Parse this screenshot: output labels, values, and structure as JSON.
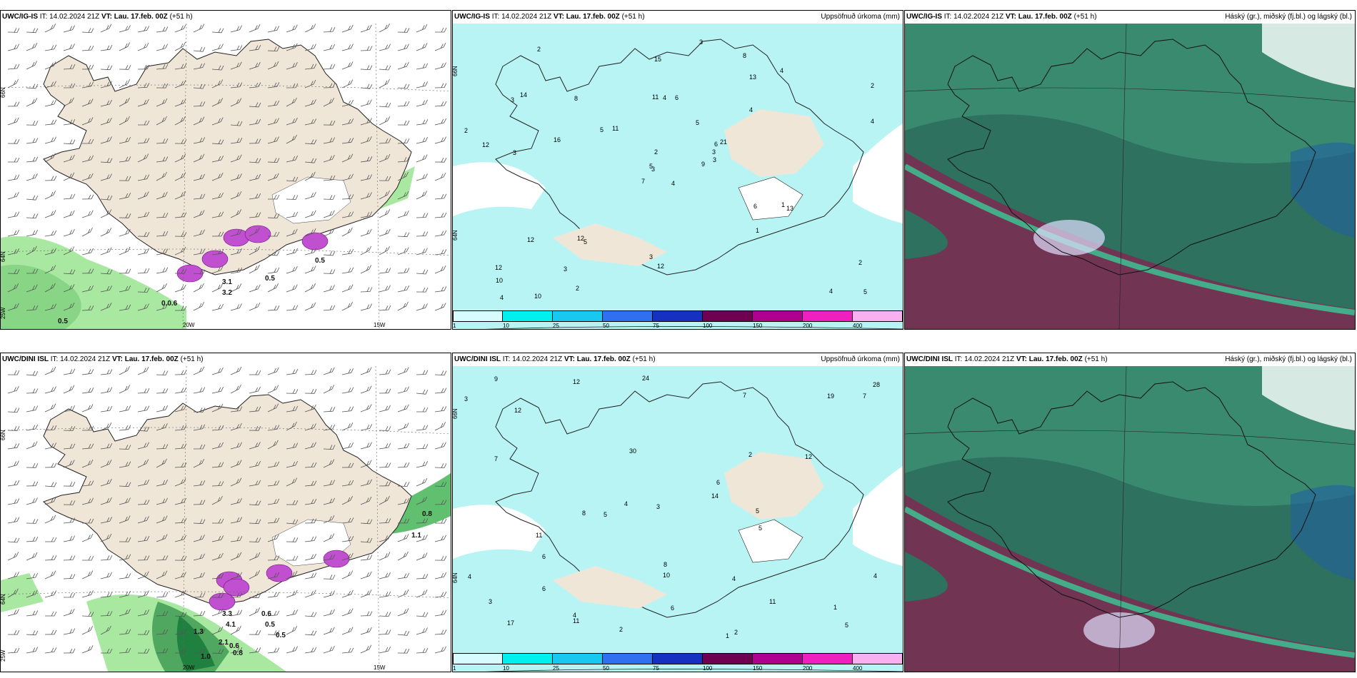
{
  "panels": [
    {
      "model": "UWC/IG-IS",
      "it_label": "IT:",
      "it": "14.02.2024 21Z",
      "vt_label": "VT:",
      "vt": "Lau. 17.feb. 00Z",
      "lead": "(+51 h)",
      "right_title": "",
      "axis": {
        "lat1": "66N",
        "lat2": "64N",
        "lon1": "20W",
        "lon2": "15W",
        "lon3": "25W"
      },
      "labels": [
        "0.5",
        "0.0.6",
        "0.5",
        "0.5",
        "3.1",
        "3.2"
      ]
    },
    {
      "model": "UWC/IG-IS",
      "it_label": "IT:",
      "it": "14.02.2024 21Z",
      "vt_label": "VT:",
      "vt": "Lau. 17.feb. 00Z",
      "lead": "(+51 h)",
      "right_title": "Uppsöfnuð úrkoma (mm)",
      "axis": {
        "lat1": "66N",
        "lat2": "64N"
      },
      "values": [
        "4",
        "3",
        "3",
        "12",
        "6",
        "5",
        "8",
        "6",
        "13",
        "9",
        "2",
        "5",
        "3",
        "2",
        "7",
        "4",
        "10",
        "11",
        "5",
        "12",
        "11",
        "10",
        "3",
        "4",
        "21",
        "13",
        "14",
        "15",
        "12",
        "6",
        "4",
        "5",
        "3",
        "2",
        "8",
        "4",
        "12",
        "4",
        "2",
        "1",
        "3",
        "5",
        "16",
        "1",
        "2",
        "2",
        "3",
        "4",
        "12",
        "3"
      ]
    },
    {
      "model": "UWC/IG-IS",
      "it_label": "IT:",
      "it": "14.02.2024 21Z",
      "vt_label": "VT:",
      "vt": "Lau. 17.feb. 00Z",
      "lead": "(+51 h)",
      "right_title": "Háský (gr.), miðský (fj.bl.) og lágský (bl.)"
    },
    {
      "model": "UWC/DINI ISL",
      "it_label": "IT:",
      "it": "14.02.2024 21Z",
      "vt_label": "VT:",
      "vt": "Lau. 17.feb. 00Z",
      "lead": "(+51 h)",
      "right_title": "",
      "axis": {
        "lat1": "66N",
        "lat2": "64N",
        "lon1": "20W",
        "lon2": "15W",
        "lon3": "25W"
      },
      "labels": [
        "0.8",
        "1.1",
        "0.6",
        "0.5",
        "0.5",
        "0.6",
        "1.0",
        "0.8",
        "1.3",
        "2.1",
        "4.1",
        "3.3"
      ]
    },
    {
      "model": "UWC/DINI ISL",
      "it_label": "IT:",
      "it": "14.02.2024 21Z",
      "vt_label": "VT:",
      "vt": "Lau. 17.feb. 00Z",
      "lead": "(+51 h)",
      "right_title": "Uppsöfnuð úrkoma (mm)",
      "axis": {
        "lat1": "66N",
        "lat2": "64N"
      },
      "values": [
        "2",
        "1",
        "4",
        "11",
        "12",
        "12",
        "8",
        "5",
        "24",
        "30",
        "19",
        "6",
        "4",
        "10",
        "7",
        "14",
        "7",
        "11",
        "5",
        "3",
        "4",
        "28",
        "6",
        "17",
        "12",
        "11",
        "4",
        "6",
        "9",
        "5",
        "3",
        "2",
        "8",
        "7",
        "6",
        "5",
        "4",
        "3",
        "2",
        "1"
      ]
    },
    {
      "model": "UWC/DINI ISL",
      "it_label": "IT:",
      "it": "14.02.2024 21Z",
      "vt_label": "VT:",
      "vt": "Lau. 17.feb. 00Z",
      "lead": "(+51 h)",
      "right_title": "Háský (gr.), miðský (fj.bl.) og lágský (bl.)"
    }
  ],
  "colorbar": {
    "ticks": [
      "1",
      "10",
      "25",
      "50",
      "75",
      "100",
      "150",
      "200",
      "400"
    ],
    "colors": [
      "#d8fbff",
      "#00f0f0",
      "#18c8f0",
      "#3070f0",
      "#1830c0",
      "#700050",
      "#b00090",
      "#f020c0",
      "#f8b0f0"
    ]
  },
  "colors": {
    "land": "#f0e6d8",
    "precip_light": "#b8f4f4",
    "green_light": "#a8e8a0",
    "green_dark": "#208040",
    "purple": "#c050d0",
    "cloud_base": "#3a8a70",
    "cloud_high": "#2a6a5a"
  }
}
